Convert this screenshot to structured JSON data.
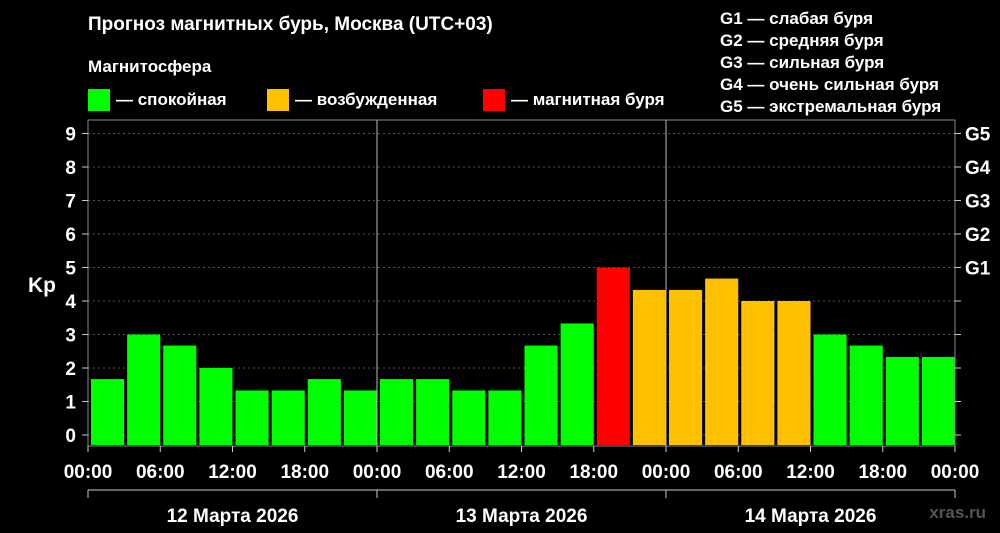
{
  "title": "Прогноз магнитных бурь, Москва (UTC+03)",
  "legend_title": "Магнитосфера",
  "legend": [
    {
      "label": "— спокойная",
      "color": "#00ff00"
    },
    {
      "label": "— возбужденная",
      "color": "#ffc000"
    },
    {
      "label": "— магнитная буря",
      "color": "#ff0000"
    }
  ],
  "storm_scale": [
    "G1 — слабая буря",
    "G2 — средняя буря",
    "G3 — сильная буря",
    "G4 — очень сильная буря",
    "G5 — экстремальная буря"
  ],
  "watermark": "xras.ru",
  "chart_data": {
    "type": "bar",
    "ylabel": "Kp",
    "ylim": [
      0,
      9
    ],
    "yticks": [
      "0",
      "1",
      "2",
      "3",
      "4",
      "5",
      "6",
      "7",
      "8",
      "9"
    ],
    "right_ticks": [
      {
        "value": 5,
        "label": "G1"
      },
      {
        "value": 6,
        "label": "G2"
      },
      {
        "value": 7,
        "label": "G3"
      },
      {
        "value": 8,
        "label": "G4"
      },
      {
        "value": 9,
        "label": "G5"
      }
    ],
    "xtick_labels": [
      "00:00",
      "06:00",
      "12:00",
      "18:00",
      "00:00",
      "06:00",
      "12:00",
      "18:00",
      "00:00",
      "06:00",
      "12:00",
      "18:00",
      "00:00"
    ],
    "days": [
      "12 Марта 2026",
      "13 Марта 2026",
      "14 Марта 2026"
    ],
    "grid": true,
    "values": [
      1.67,
      3.0,
      2.67,
      2.0,
      1.33,
      1.33,
      1.67,
      1.33,
      1.67,
      1.67,
      1.33,
      1.33,
      2.67,
      3.33,
      5.0,
      4.33,
      4.33,
      4.67,
      4.0,
      4.0,
      3.0,
      2.67,
      2.33,
      2.33
    ],
    "colors": [
      "#00ff00",
      "#00ff00",
      "#00ff00",
      "#00ff00",
      "#00ff00",
      "#00ff00",
      "#00ff00",
      "#00ff00",
      "#00ff00",
      "#00ff00",
      "#00ff00",
      "#00ff00",
      "#00ff00",
      "#00ff00",
      "#ff0000",
      "#ffc000",
      "#ffc000",
      "#ffc000",
      "#ffc000",
      "#ffc000",
      "#00ff00",
      "#00ff00",
      "#00ff00",
      "#00ff00"
    ]
  }
}
